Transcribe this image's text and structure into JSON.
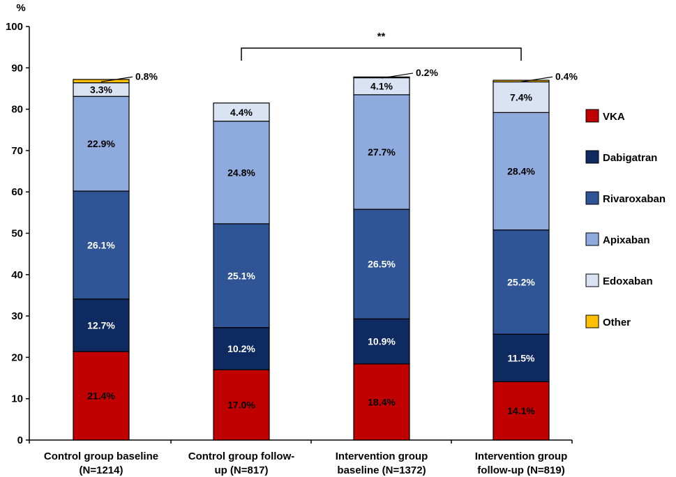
{
  "chart_data": {
    "type": "bar",
    "stacked": true,
    "ylabel": "%",
    "ylim": [
      0,
      100
    ],
    "yticks": [
      0,
      10,
      20,
      30,
      40,
      50,
      60,
      70,
      80,
      90,
      100
    ],
    "grid": false,
    "legend_position": "right",
    "categories": [
      [
        "Control group baseline",
        "(N=1214)"
      ],
      [
        "Control group follow-",
        "up (N=817)"
      ],
      [
        "Intervention group",
        "baseline (N=1372)"
      ],
      [
        "Intervention group",
        "follow-up (N=819)"
      ]
    ],
    "series": [
      {
        "name": "VKA",
        "color": "#C00000",
        "values": [
          21.4,
          17.0,
          18.4,
          14.1
        ],
        "labels": [
          "21.4%",
          "17.0%",
          "18.4%",
          "14.1%"
        ]
      },
      {
        "name": "Dabigatran",
        "color": "#0E2A61",
        "values": [
          12.7,
          10.2,
          10.9,
          11.5
        ],
        "labels": [
          "12.7%",
          "10.2%",
          "10.9%",
          "11.5%"
        ]
      },
      {
        "name": "Rivaroxaban",
        "color": "#2F5597",
        "values": [
          26.1,
          25.1,
          26.5,
          25.2
        ],
        "labels": [
          "26.1%",
          "25.1%",
          "26.5%",
          "25.2%"
        ]
      },
      {
        "name": "Apixaban",
        "color": "#8FAADC",
        "values": [
          22.9,
          24.8,
          27.7,
          28.4
        ],
        "labels": [
          "22.9%",
          "24.8%",
          "27.7%",
          "28.4%"
        ]
      },
      {
        "name": "Edoxaban",
        "color": "#DAE3F3",
        "values": [
          3.3,
          4.4,
          4.1,
          7.4
        ],
        "labels": [
          "3.3%",
          "4.4%",
          "4.1%",
          "7.4%"
        ]
      },
      {
        "name": "Other",
        "color": "#FFC000",
        "values": [
          0.8,
          0,
          0.2,
          0.4
        ],
        "labels": [
          "0.8%",
          "",
          "0.2%",
          "0.4%"
        ]
      }
    ],
    "significance": {
      "from": 1,
      "to": 3,
      "label": "**"
    }
  }
}
